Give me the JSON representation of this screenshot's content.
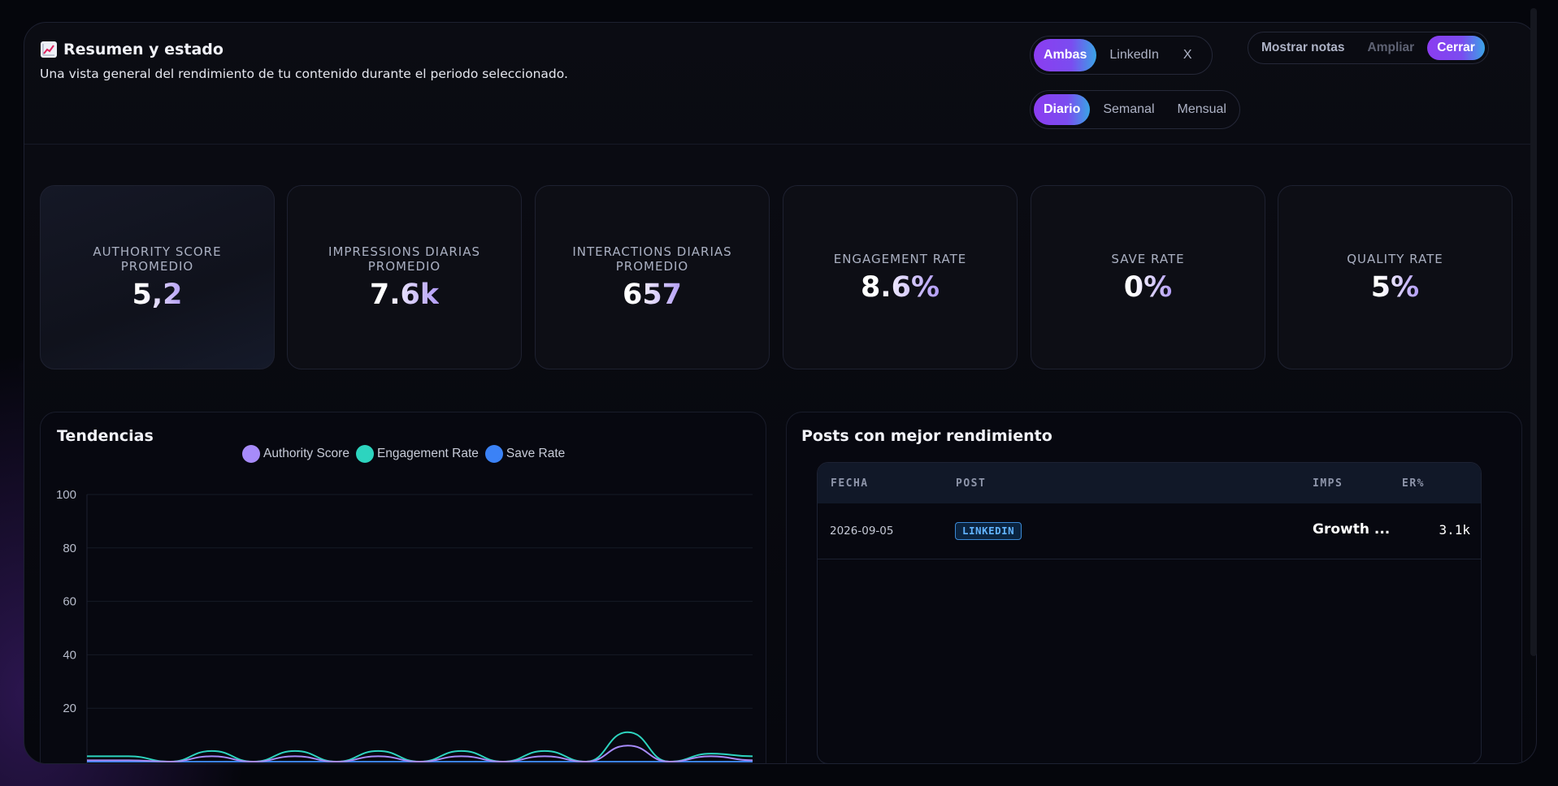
{
  "header": {
    "title": "Resumen y estado",
    "subtitle": "Una vista general del rendimiento de tu contenido durante el periodo seleccionado."
  },
  "filters": {
    "platform": [
      "Ambas",
      "LinkedIn",
      "X"
    ],
    "platform_selected": "Ambas",
    "period": [
      "Diario",
      "Semanal",
      "Mensual"
    ],
    "period_selected": "Diario"
  },
  "actions": {
    "notes": "Mostrar notas",
    "expand": "Ampliar",
    "close": "Cerrar"
  },
  "kpis": [
    {
      "label": "AUTHORITY SCORE PROMEDIO",
      "value": "5,2"
    },
    {
      "label": "IMPRESSIONS DIARIAS PROMEDIO",
      "value": "7.6k"
    },
    {
      "label": "INTERACTIONS DIARIAS PROMEDIO",
      "value": "657"
    },
    {
      "label": "ENGAGEMENT RATE",
      "value": "8.6%"
    },
    {
      "label": "SAVE RATE",
      "value": "0%"
    },
    {
      "label": "QUALITY RATE",
      "value": "5%"
    }
  ],
  "trends": {
    "title": "Tendencias"
  },
  "top_posts": {
    "title": "Posts con mejor rendimiento",
    "columns": [
      "FECHA",
      "POST",
      "IMPS",
      "ER%"
    ],
    "rows": [
      {
        "date": "2026-09-05",
        "platform": "LINKEDIN",
        "title": "Growth ...",
        "imps": "3.1k"
      }
    ]
  },
  "chart_data": {
    "type": "line",
    "title": "",
    "xlabel": "",
    "ylabel": "",
    "ylim": [
      0,
      100
    ],
    "yticks": [
      20,
      40,
      60,
      80,
      100
    ],
    "legend_position": "top-center",
    "grid": true,
    "series": [
      {
        "name": "Authority Score",
        "color": "#a78bfa",
        "values": [
          0.5,
          0.5,
          0,
          2,
          0,
          2,
          0,
          2,
          0,
          2,
          0,
          2,
          0,
          6,
          0,
          2,
          0.5
        ]
      },
      {
        "name": "Engagement Rate",
        "color": "#2dd4bf",
        "values": [
          2,
          2,
          0,
          4,
          0,
          4,
          0,
          4,
          0,
          4,
          0,
          4,
          0,
          11,
          0,
          3,
          2
        ]
      },
      {
        "name": "Save Rate",
        "color": "#3b82f6",
        "values": [
          0,
          0,
          0,
          0,
          0,
          0,
          0,
          0,
          0,
          0,
          0,
          0,
          0,
          0,
          0,
          0,
          0
        ]
      }
    ]
  }
}
